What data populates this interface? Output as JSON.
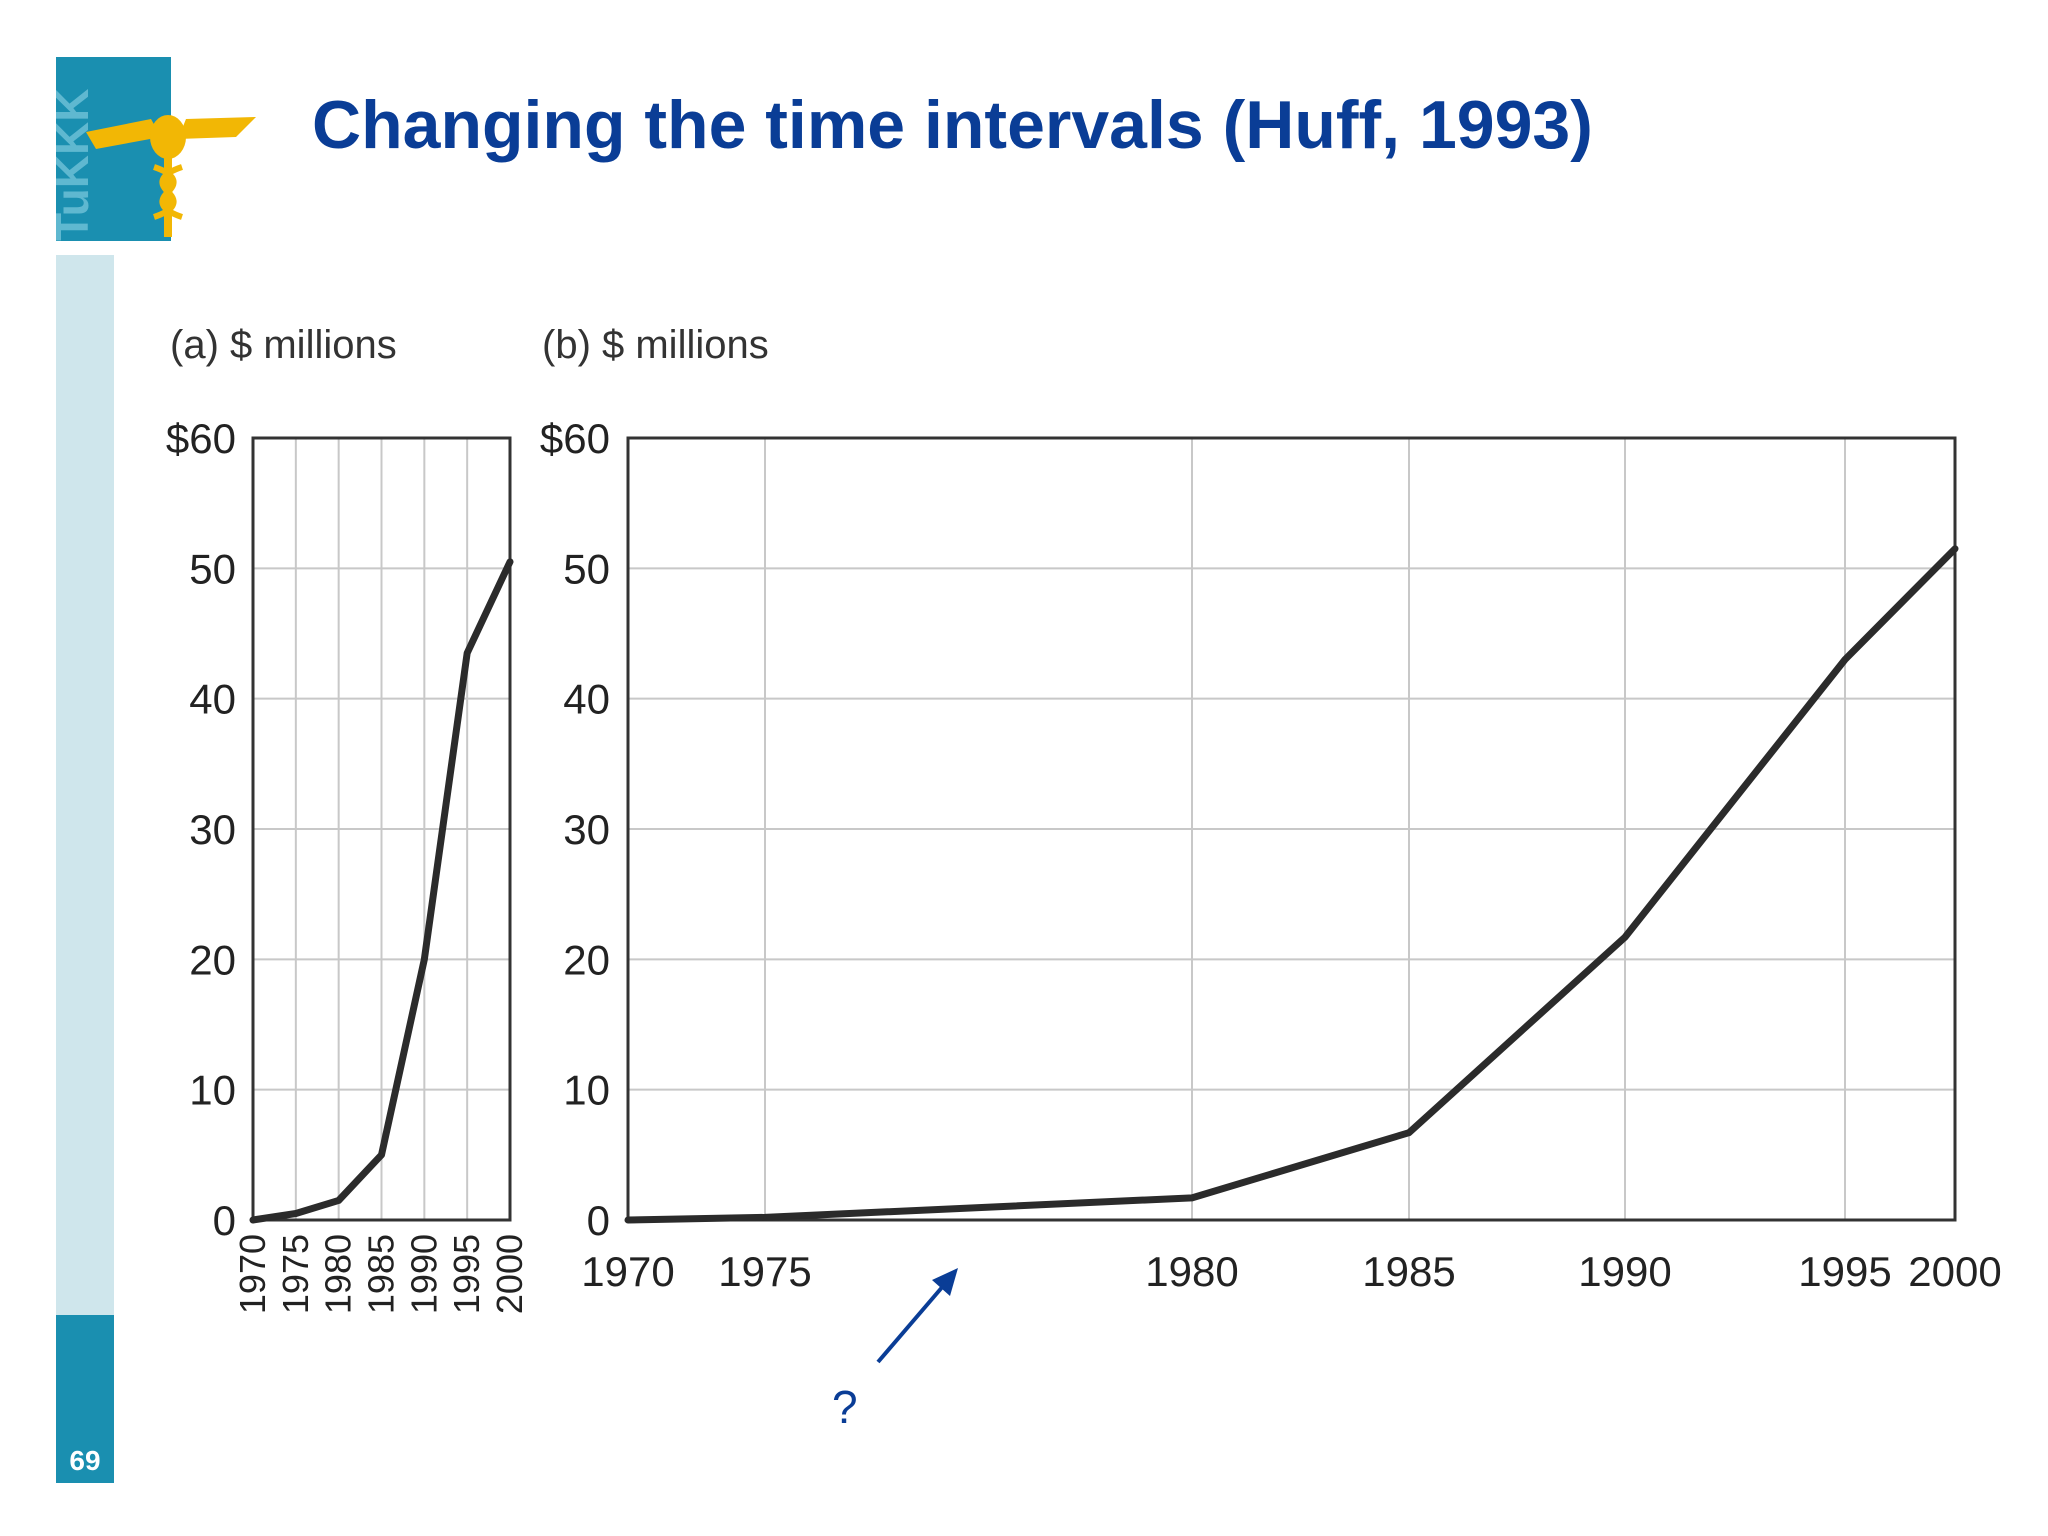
{
  "slide": {
    "title": "Changing the time intervals (Huff, 1993)",
    "page_number": "69",
    "logo_text": "TuKKK",
    "annotation": "?"
  },
  "colors": {
    "title": "#0a3d96",
    "sidebar_light": "#cfe6ec",
    "sidebar_dark": "#1a8fb0",
    "line": "#2b2b2b",
    "grid": "#c8c8c8",
    "arrow": "#0a3d96",
    "logo_gold": "#f2b705"
  },
  "chart_data": [
    {
      "type": "line",
      "panel_label": "(a) $ millions",
      "x": [
        1970,
        1975,
        1980,
        1985,
        1990,
        1995,
        2000
      ],
      "x_tick_labels": [
        "1970",
        "1975",
        "1980",
        "1985",
        "1990",
        "1995",
        "2000"
      ],
      "x_tick_orientation": "vertical",
      "series": [
        {
          "values": [
            0,
            0.5,
            1.5,
            5,
            20,
            43.5,
            50.5
          ]
        }
      ],
      "y_tick_labels": [
        "0",
        "10",
        "20",
        "30",
        "40",
        "50",
        "$60"
      ],
      "y_ticks": [
        0,
        10,
        20,
        30,
        40,
        50,
        60
      ],
      "ylim": [
        0,
        60
      ],
      "grid": true
    },
    {
      "type": "line",
      "panel_label": "(b) $ millions",
      "x": [
        1970,
        1975,
        1980,
        1985,
        1990,
        1995,
        2000
      ],
      "x_tick_labels": [
        "1970",
        "1975",
        "1980",
        "1985",
        "1990",
        "1995",
        "2000"
      ],
      "x_tick_orientation": "horizontal",
      "x_spacing": "uneven",
      "series": [
        {
          "values": [
            0,
            0.2,
            1.7,
            6.7,
            21.7,
            43,
            51.5
          ]
        }
      ],
      "y_tick_labels": [
        "0",
        "10",
        "20",
        "30",
        "40",
        "50",
        "$60"
      ],
      "y_ticks": [
        0,
        10,
        20,
        30,
        40,
        50,
        60
      ],
      "ylim": [
        0,
        60
      ],
      "grid": true
    }
  ]
}
